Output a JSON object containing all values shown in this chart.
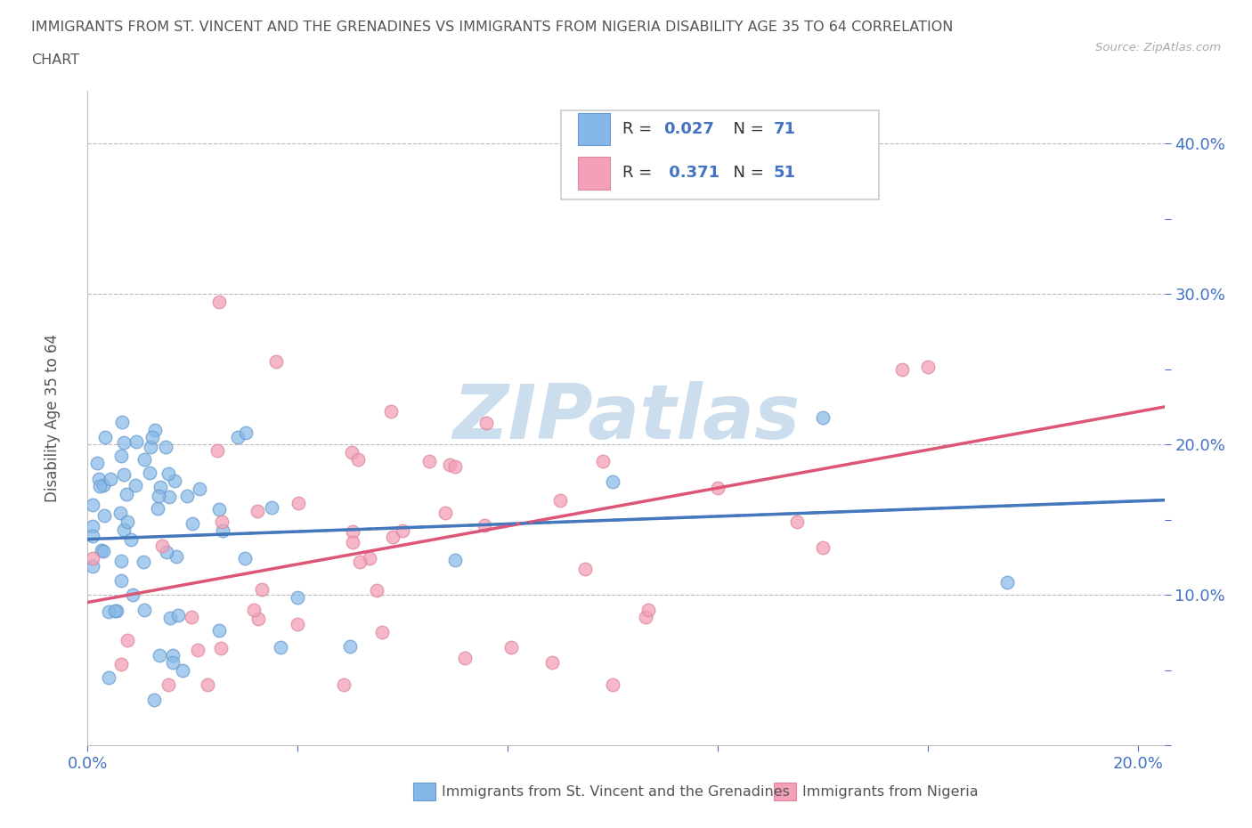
{
  "title_line1": "IMMIGRANTS FROM ST. VINCENT AND THE GRENADINES VS IMMIGRANTS FROM NIGERIA DISABILITY AGE 35 TO 64 CORRELATION",
  "title_line2": "CHART",
  "source": "Source: ZipAtlas.com",
  "ylabel": "Disability Age 35 to 64",
  "xlim": [
    0.0,
    0.205
  ],
  "ylim": [
    0.0,
    0.435
  ],
  "color_svg": "#85B8E8",
  "color_svg_edge": "#6699CC",
  "color_nigeria": "#F4A0B8",
  "color_nigeria_edge": "#DD8899",
  "color_trendline_svg": "#4477BB",
  "color_trendline_nigeria": "#DD5577",
  "axis_color": "#4472C4",
  "text_color": "#555555",
  "grid_color": "#BBBBBB",
  "legend_R_color": "#4472C4",
  "legend_label_color": "#333333",
  "watermark_color": "#CCDDEE",
  "legend_label_svg": "Immigrants from St. Vincent and the Grenadines",
  "legend_label_nigeria": "Immigrants from Nigeria",
  "R_svg": 0.027,
  "N_svg": 71,
  "R_nigeria": 0.371,
  "N_nigeria": 51,
  "svg_trendline_x0": 0.0,
  "svg_trendline_x1": 0.205,
  "svg_trendline_y0": 0.137,
  "svg_trendline_y1": 0.163,
  "nig_trendline_x0": 0.0,
  "nig_trendline_x1": 0.205,
  "nig_trendline_y0": 0.095,
  "nig_trendline_y1": 0.225
}
